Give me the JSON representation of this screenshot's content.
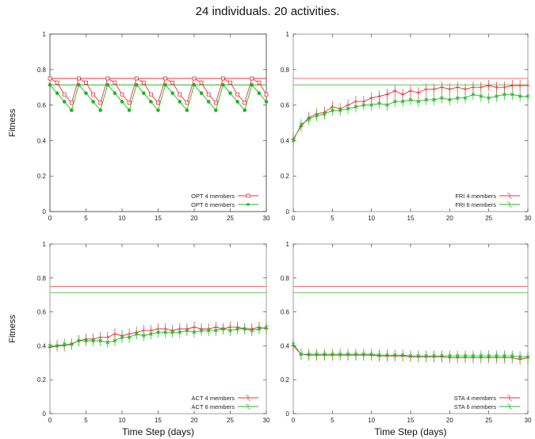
{
  "title": "24 individuals. 20 activities.",
  "colors": {
    "red": "#e8303a",
    "green": "#22b422",
    "redLight": "#ee6f77",
    "greenLight": "#56c856"
  },
  "chart_data": [
    {
      "type": "line",
      "id": "opt",
      "ylabel": "Fitness",
      "xlabel": "",
      "xlim": [
        0,
        30
      ],
      "ylim": [
        0,
        1
      ],
      "xticks": [
        0,
        5,
        10,
        15,
        20,
        25,
        30
      ],
      "yticks": [
        0,
        0.2,
        0.4,
        0.6,
        0.8,
        1
      ],
      "grid": false,
      "legend_position": "bottom-right",
      "reference_lines": [
        {
          "y": 0.75,
          "color": "red"
        },
        {
          "y": 0.714,
          "color": "green"
        }
      ],
      "series": [
        {
          "name": "OPT 4 members",
          "color": "red",
          "marker": "square",
          "errorbars": false,
          "x": [
            0,
            1,
            2,
            3,
            4,
            5,
            6,
            7,
            8,
            9,
            10,
            11,
            12,
            13,
            14,
            15,
            16,
            17,
            18,
            19,
            20,
            21,
            22,
            23,
            24,
            25,
            26,
            27,
            28,
            29,
            30
          ],
          "y": [
            0.75,
            0.727,
            0.66,
            0.613,
            0.75,
            0.727,
            0.66,
            0.613,
            0.75,
            0.727,
            0.66,
            0.613,
            0.75,
            0.727,
            0.66,
            0.613,
            0.75,
            0.727,
            0.66,
            0.613,
            0.75,
            0.727,
            0.66,
            0.613,
            0.75,
            0.727,
            0.66,
            0.613,
            0.75,
            0.727,
            0.66
          ]
        },
        {
          "name": "OPT 6 members",
          "color": "green",
          "marker": "circle",
          "errorbars": false,
          "x": [
            0,
            1,
            2,
            3,
            4,
            5,
            6,
            7,
            8,
            9,
            10,
            11,
            12,
            13,
            14,
            15,
            16,
            17,
            18,
            19,
            20,
            21,
            22,
            23,
            24,
            25,
            26,
            27,
            28,
            29,
            30
          ],
          "y": [
            0.714,
            0.667,
            0.619,
            0.571,
            0.714,
            0.667,
            0.619,
            0.571,
            0.714,
            0.667,
            0.619,
            0.571,
            0.714,
            0.667,
            0.619,
            0.571,
            0.714,
            0.667,
            0.619,
            0.571,
            0.714,
            0.667,
            0.619,
            0.571,
            0.714,
            0.667,
            0.619,
            0.571,
            0.714,
            0.667,
            0.619
          ]
        }
      ]
    },
    {
      "type": "line",
      "id": "fri",
      "ylabel": "",
      "xlabel": "",
      "xlim": [
        0,
        30
      ],
      "ylim": [
        0,
        1
      ],
      "xticks": [
        0,
        5,
        10,
        15,
        20,
        25,
        30
      ],
      "yticks": [
        0,
        0.2,
        0.4,
        0.6,
        0.8,
        1
      ],
      "grid": false,
      "legend_position": "bottom-right",
      "reference_lines": [
        {
          "y": 0.75,
          "color": "red"
        },
        {
          "y": 0.714,
          "color": "green"
        }
      ],
      "series": [
        {
          "name": "FRI 4 members",
          "color": "red",
          "marker": "plus",
          "errorbars": true,
          "x": [
            0,
            1,
            2,
            3,
            4,
            5,
            6,
            7,
            8,
            9,
            10,
            11,
            12,
            13,
            14,
            15,
            16,
            17,
            18,
            19,
            20,
            21,
            22,
            23,
            24,
            25,
            26,
            27,
            28,
            29,
            30
          ],
          "y": [
            0.41,
            0.48,
            0.53,
            0.55,
            0.56,
            0.59,
            0.58,
            0.6,
            0.62,
            0.62,
            0.64,
            0.65,
            0.66,
            0.68,
            0.66,
            0.68,
            0.67,
            0.69,
            0.69,
            0.7,
            0.69,
            0.7,
            0.69,
            0.7,
            0.7,
            0.71,
            0.7,
            0.7,
            0.71,
            0.71,
            0.71
          ]
        },
        {
          "name": "FRI 6 members",
          "color": "green",
          "marker": "x",
          "errorbars": true,
          "x": [
            0,
            1,
            2,
            3,
            4,
            5,
            6,
            7,
            8,
            9,
            10,
            11,
            12,
            13,
            14,
            15,
            16,
            17,
            18,
            19,
            20,
            21,
            22,
            23,
            24,
            25,
            26,
            27,
            28,
            29,
            30
          ],
          "y": [
            0.4,
            0.49,
            0.52,
            0.54,
            0.55,
            0.57,
            0.57,
            0.58,
            0.59,
            0.6,
            0.6,
            0.61,
            0.6,
            0.62,
            0.62,
            0.63,
            0.62,
            0.63,
            0.63,
            0.64,
            0.63,
            0.64,
            0.64,
            0.66,
            0.65,
            0.64,
            0.65,
            0.66,
            0.66,
            0.65,
            0.65
          ]
        }
      ]
    },
    {
      "type": "line",
      "id": "act",
      "ylabel": "Fitness",
      "xlabel": "Time Step (days)",
      "xlim": [
        0,
        30
      ],
      "ylim": [
        0,
        1
      ],
      "xticks": [
        0,
        5,
        10,
        15,
        20,
        25,
        30
      ],
      "yticks": [
        0,
        0.2,
        0.4,
        0.6,
        0.8,
        1
      ],
      "grid": false,
      "legend_position": "bottom-right",
      "reference_lines": [
        {
          "y": 0.75,
          "color": "red"
        },
        {
          "y": 0.714,
          "color": "green"
        }
      ],
      "series": [
        {
          "name": "ACT 4 members",
          "color": "red",
          "marker": "plus",
          "errorbars": true,
          "x": [
            0,
            1,
            2,
            3,
            4,
            5,
            6,
            7,
            8,
            9,
            10,
            11,
            12,
            13,
            14,
            15,
            16,
            17,
            18,
            19,
            20,
            21,
            22,
            23,
            24,
            25,
            26,
            27,
            28,
            29,
            30
          ],
          "y": [
            0.39,
            0.4,
            0.4,
            0.41,
            0.43,
            0.44,
            0.44,
            0.45,
            0.45,
            0.47,
            0.46,
            0.47,
            0.48,
            0.49,
            0.49,
            0.5,
            0.5,
            0.49,
            0.5,
            0.5,
            0.51,
            0.5,
            0.5,
            0.51,
            0.5,
            0.51,
            0.51,
            0.5,
            0.5,
            0.51,
            0.5
          ]
        },
        {
          "name": "ACT 6 members",
          "color": "green",
          "marker": "x",
          "errorbars": true,
          "x": [
            0,
            1,
            2,
            3,
            4,
            5,
            6,
            7,
            8,
            9,
            10,
            11,
            12,
            13,
            14,
            15,
            16,
            17,
            18,
            19,
            20,
            21,
            22,
            23,
            24,
            25,
            26,
            27,
            28,
            29,
            30
          ],
          "y": [
            0.4,
            0.4,
            0.41,
            0.41,
            0.43,
            0.43,
            0.43,
            0.43,
            0.42,
            0.43,
            0.45,
            0.45,
            0.47,
            0.46,
            0.47,
            0.48,
            0.48,
            0.48,
            0.48,
            0.49,
            0.48,
            0.49,
            0.49,
            0.49,
            0.5,
            0.49,
            0.5,
            0.5,
            0.49,
            0.5,
            0.51
          ]
        }
      ]
    },
    {
      "type": "line",
      "id": "sta",
      "ylabel": "",
      "xlabel": "Time Step (days)",
      "xlim": [
        0,
        30
      ],
      "ylim": [
        0,
        1
      ],
      "xticks": [
        0,
        5,
        10,
        15,
        20,
        25,
        30
      ],
      "yticks": [
        0,
        0.2,
        0.4,
        0.6,
        0.8,
        1
      ],
      "grid": false,
      "legend_position": "bottom-right",
      "reference_lines": [
        {
          "y": 0.75,
          "color": "red"
        },
        {
          "y": 0.714,
          "color": "green"
        }
      ],
      "series": [
        {
          "name": "STA 4 members",
          "color": "red",
          "marker": "plus",
          "errorbars": true,
          "x": [
            0,
            1,
            2,
            3,
            4,
            5,
            6,
            7,
            8,
            9,
            10,
            11,
            12,
            13,
            14,
            15,
            16,
            17,
            18,
            19,
            20,
            21,
            22,
            23,
            24,
            25,
            26,
            27,
            28,
            29,
            30
          ],
          "y": [
            0.4,
            0.35,
            0.345,
            0.345,
            0.345,
            0.345,
            0.345,
            0.345,
            0.345,
            0.345,
            0.345,
            0.34,
            0.34,
            0.34,
            0.34,
            0.335,
            0.335,
            0.335,
            0.335,
            0.335,
            0.33,
            0.33,
            0.33,
            0.33,
            0.33,
            0.33,
            0.33,
            0.33,
            0.33,
            0.32,
            0.33
          ]
        },
        {
          "name": "STA 6 members",
          "color": "green",
          "marker": "x",
          "errorbars": true,
          "x": [
            0,
            1,
            2,
            3,
            4,
            5,
            6,
            7,
            8,
            9,
            10,
            11,
            12,
            13,
            14,
            15,
            16,
            17,
            18,
            19,
            20,
            21,
            22,
            23,
            24,
            25,
            26,
            27,
            28,
            29,
            30
          ],
          "y": [
            0.41,
            0.35,
            0.35,
            0.35,
            0.35,
            0.35,
            0.35,
            0.35,
            0.35,
            0.35,
            0.35,
            0.345,
            0.345,
            0.345,
            0.345,
            0.34,
            0.34,
            0.34,
            0.34,
            0.34,
            0.34,
            0.34,
            0.34,
            0.34,
            0.34,
            0.34,
            0.34,
            0.34,
            0.34,
            0.335,
            0.335
          ]
        }
      ]
    }
  ]
}
